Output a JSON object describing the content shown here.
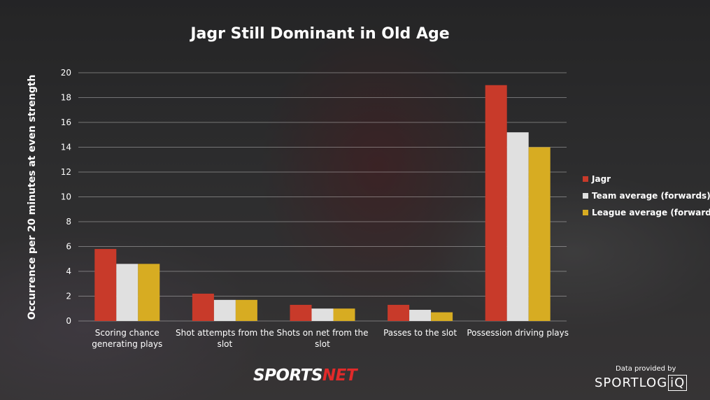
{
  "chart_data": {
    "type": "bar",
    "title": "Jagr Still Dominant in Old Age",
    "ylabel": "Occurrence per 20 minutes at even strength",
    "xlabel": "",
    "ylim": [
      0,
      20
    ],
    "yticks": [
      0,
      2,
      4,
      6,
      8,
      10,
      12,
      14,
      16,
      18,
      20
    ],
    "grid": true,
    "legend_position": "right",
    "categories": [
      [
        "Scoring chance",
        "generating plays"
      ],
      [
        "Shot attempts from the",
        "slot"
      ],
      [
        "Shots on net from the",
        "slot"
      ],
      [
        "Passes to the slot"
      ],
      [
        "Possession driving plays"
      ]
    ],
    "series": [
      {
        "name": "Jagr",
        "color": "#c83a2a",
        "values": [
          5.8,
          2.2,
          1.3,
          1.3,
          19.0
        ]
      },
      {
        "name": "Team average (forwards)",
        "color": "#e0e0e0",
        "values": [
          4.6,
          1.7,
          1.0,
          0.9,
          15.2
        ]
      },
      {
        "name": "League average (forwards)",
        "color": "#d7ac22",
        "values": [
          4.6,
          1.7,
          1.0,
          0.7,
          14.0
        ]
      }
    ]
  },
  "branding": {
    "network_main": "SPORTS",
    "network_accent": "NET",
    "credit_label": "Data provided by",
    "partner_main": "SPORTLOG",
    "partner_boxed": "iQ"
  }
}
